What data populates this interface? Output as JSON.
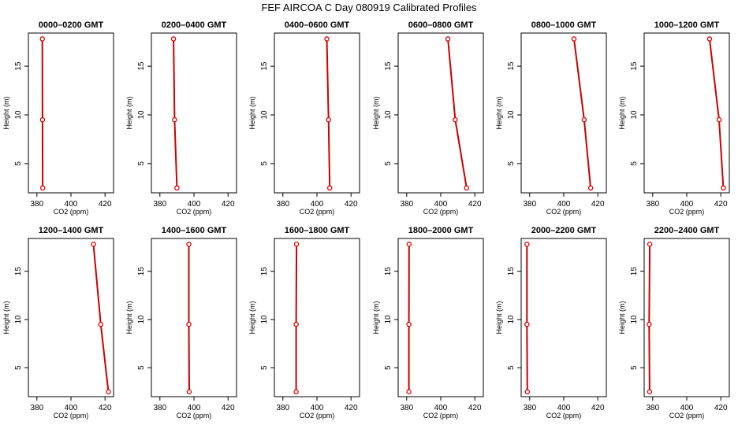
{
  "chart_data": {
    "type": "line",
    "title": "FEF AIRCOA C  Day 080919  Calibrated Profiles",
    "xlabel": "CO2 (ppm)",
    "ylabel": "Height (m)",
    "xlim": [
      375,
      425
    ],
    "ylim": [
      2,
      18.4
    ],
    "xticks": [
      380,
      400,
      420
    ],
    "xtick_labels": [
      "380",
      "400",
      "420"
    ],
    "yticks": [
      5,
      10,
      15
    ],
    "ytick_labels": [
      "5",
      "10",
      "15"
    ],
    "heights": [
      17.8,
      9.5,
      2.5
    ],
    "line_color": "#cc0000",
    "marker_color": "#dd0000",
    "panels": [
      {
        "title": "0000–0200 GMT",
        "co2": [
          383.2,
          383.3,
          383.4
        ]
      },
      {
        "title": "0200–0400 GMT",
        "co2": [
          388.0,
          388.6,
          390.0
        ]
      },
      {
        "title": "0400–0600 GMT",
        "co2": [
          405.8,
          406.8,
          407.5
        ]
      },
      {
        "title": "0600–0800 GMT",
        "co2": [
          404.2,
          408.5,
          415.2
        ]
      },
      {
        "title": "0800–1000 GMT",
        "co2": [
          406.0,
          412.0,
          415.8
        ]
      },
      {
        "title": "1000–1200 GMT",
        "co2": [
          413.4,
          419.0,
          421.5
        ]
      },
      {
        "title": "1200–1400 GMT",
        "co2": [
          413.2,
          417.5,
          422.0
        ]
      },
      {
        "title": "1400–1600 GMT",
        "co2": [
          397.0,
          397.0,
          397.2
        ]
      },
      {
        "title": "1600–1800 GMT",
        "co2": [
          388.0,
          387.8,
          387.8
        ]
      },
      {
        "title": "1800–2000 GMT",
        "co2": [
          381.4,
          381.3,
          381.3
        ]
      },
      {
        "title": "2000–2200 GMT",
        "co2": [
          378.4,
          378.4,
          378.6
        ]
      },
      {
        "title": "2200–2400 GMT",
        "co2": [
          378.3,
          377.9,
          378.2
        ]
      }
    ]
  }
}
